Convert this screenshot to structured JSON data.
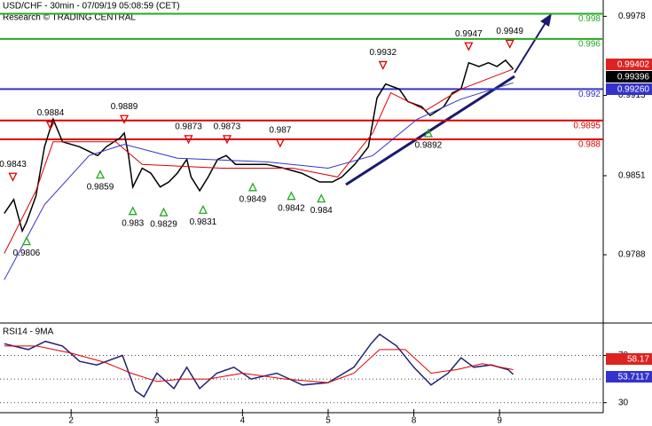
{
  "chart_data": [
    {
      "type": "line",
      "title": "USD/CHF - 30min - 07/09/19 05:08:59 (CET)",
      "subtitle": "Research © TRADING CENTRAL",
      "xlim": [
        0.17,
        7.21
      ],
      "xticks": [
        {
          "value": 1,
          "label": "2"
        },
        {
          "value": 2,
          "label": "3"
        },
        {
          "value": 3,
          "label": "4"
        },
        {
          "value": 4,
          "label": "5"
        },
        {
          "value": 5,
          "label": "8"
        },
        {
          "value": 6,
          "label": "9"
        }
      ],
      "ylim": [
        0.9735,
        0.9991
      ],
      "yticks": [
        0.9978,
        0.9915,
        0.9851,
        0.9788
      ],
      "series": [
        {
          "color": "#000000",
          "x": [
            0.22,
            0.33,
            0.43,
            0.48,
            0.59,
            0.69,
            0.79,
            0.9,
            1.1,
            1.31,
            1.41,
            1.57,
            1.62,
            1.67,
            1.72,
            1.83,
            1.93,
            2.04,
            2.14,
            2.24,
            2.35,
            2.4,
            2.5,
            2.6,
            2.71,
            2.81,
            2.92,
            3.07,
            3.28,
            3.48,
            3.69,
            3.9,
            4.05,
            4.16,
            4.31,
            4.47,
            4.57,
            4.67,
            4.83,
            4.93,
            5.09,
            5.19,
            5.35,
            5.45,
            5.55,
            5.64,
            5.76,
            5.87,
            5.97,
            6.07,
            6.16
          ],
          "values": [
            0.9821,
            0.9832,
            0.9807,
            0.9814,
            0.9835,
            0.9874,
            0.9896,
            0.9878,
            0.9874,
            0.9867,
            0.9874,
            0.9881,
            0.9885,
            0.9867,
            0.9842,
            0.9857,
            0.9853,
            0.9842,
            0.9846,
            0.9853,
            0.9864,
            0.985,
            0.9839,
            0.985,
            0.9864,
            0.9867,
            0.986,
            0.986,
            0.986,
            0.9857,
            0.9853,
            0.9846,
            0.9846,
            0.985,
            0.986,
            0.9874,
            0.9913,
            0.9924,
            0.992,
            0.991,
            0.9906,
            0.9899,
            0.9906,
            0.9917,
            0.992,
            0.9941,
            0.9938,
            0.9941,
            0.9938,
            0.9943,
            0.9936
          ]
        },
        {
          "color": "#dd0000",
          "x": [
            0.22,
            0.59,
            0.79,
            1.52,
            1.83,
            2.76,
            3.59,
            4.11,
            4.52,
            4.73,
            5.14,
            5.55,
            6.16
          ],
          "values": [
            0.9789,
            0.9839,
            0.9878,
            0.9878,
            0.986,
            0.9857,
            0.9857,
            0.985,
            0.9885,
            0.9917,
            0.9903,
            0.992,
            0.9936
          ]
        },
        {
          "color": "#3333cc",
          "x": [
            0.22,
            0.69,
            1.21,
            1.62,
            2.24,
            3.28,
            4.0,
            4.52,
            5.04,
            5.55,
            6.16
          ],
          "values": [
            0.9768,
            0.9828,
            0.9867,
            0.9876,
            0.9865,
            0.9862,
            0.9857,
            0.9867,
            0.9896,
            0.9912,
            0.9925
          ]
        }
      ],
      "levels": [
        {
          "value": 0.998,
          "color": "#22aa22"
        },
        {
          "value": 0.996,
          "color": "#22aa22"
        },
        {
          "value": 0.992,
          "color": "#3333cc"
        },
        {
          "value": 0.9895,
          "color": "#dd0000"
        },
        {
          "value": 0.988,
          "color": "#dd0000"
        }
      ],
      "price_boxes": [
        {
          "value": 0.99402,
          "label": "0.99402",
          "color": "#dd2222"
        },
        {
          "value": 0.99396,
          "label": "0.99396",
          "color": "#000000"
        },
        {
          "value": 0.9926,
          "label": "0.99260",
          "color": "#3333cc"
        }
      ],
      "annotations": [
        {
          "x": 0.32,
          "value": 0.9843,
          "kind": "peak"
        },
        {
          "x": 0.48,
          "value": 0.9806,
          "kind": "trough"
        },
        {
          "x": 0.76,
          "value": 0.9884,
          "kind": "peak"
        },
        {
          "x": 1.34,
          "value": 0.9859,
          "kind": "trough"
        },
        {
          "x": 1.62,
          "value": 0.9889,
          "kind": "peak"
        },
        {
          "x": 1.72,
          "value": 0.983,
          "kind": "trough"
        },
        {
          "x": 2.08,
          "value": 0.9829,
          "kind": "trough"
        },
        {
          "x": 2.37,
          "value": 0.9873,
          "kind": "peak"
        },
        {
          "x": 2.54,
          "value": 0.9831,
          "kind": "trough"
        },
        {
          "x": 2.82,
          "value": 0.9873,
          "kind": "peak"
        },
        {
          "x": 3.12,
          "value": 0.9849,
          "kind": "trough"
        },
        {
          "x": 3.44,
          "value": 0.987,
          "kind": "peak"
        },
        {
          "x": 3.57,
          "value": 0.9842,
          "kind": "trough"
        },
        {
          "x": 3.92,
          "value": 0.984,
          "kind": "trough"
        },
        {
          "x": 4.64,
          "value": 0.9932,
          "kind": "peak"
        },
        {
          "x": 5.17,
          "value": 0.9892,
          "kind": "trough"
        },
        {
          "x": 5.64,
          "value": 0.9947,
          "kind": "peak"
        },
        {
          "x": 6.12,
          "value": 0.9949,
          "kind": "peak"
        }
      ]
    },
    {
      "type": "line",
      "title": "RSI14 - 9MA",
      "xlim": [
        0.17,
        7.21
      ],
      "ylim": [
        23,
        96
      ],
      "yticks": [
        30,
        70
      ],
      "guides": [
        70,
        50,
        30
      ],
      "series": [
        {
          "color": "#222277",
          "x": [
            0.22,
            0.5,
            0.7,
            0.9,
            1.1,
            1.3,
            1.6,
            1.75,
            1.85,
            2.0,
            2.2,
            2.35,
            2.5,
            2.7,
            2.9,
            3.1,
            3.4,
            3.7,
            4.0,
            4.3,
            4.5,
            4.6,
            4.8,
            5.0,
            5.2,
            5.4,
            5.55,
            5.7,
            5.9,
            6.1,
            6.16
          ],
          "values": [
            80,
            75,
            82,
            78,
            65,
            62,
            70,
            40,
            35,
            55,
            42,
            60,
            42,
            55,
            60,
            50,
            55,
            45,
            47,
            60,
            80,
            88,
            78,
            60,
            45,
            55,
            68,
            60,
            62,
            58,
            54
          ]
        },
        {
          "color": "#dd0000",
          "x": [
            0.22,
            0.6,
            1.0,
            1.4,
            1.7,
            2.0,
            2.3,
            2.6,
            3.0,
            3.5,
            4.0,
            4.3,
            4.6,
            4.9,
            5.2,
            5.5,
            5.8,
            6.16
          ],
          "values": [
            78,
            78,
            72,
            64,
            55,
            48,
            50,
            50,
            55,
            50,
            47,
            55,
            75,
            75,
            55,
            58,
            63,
            58
          ]
        }
      ],
      "price_boxes": [
        {
          "value": 58.17,
          "color": "#dd2222"
        },
        {
          "value": 53.7117,
          "color": "#3333cc"
        }
      ]
    }
  ]
}
